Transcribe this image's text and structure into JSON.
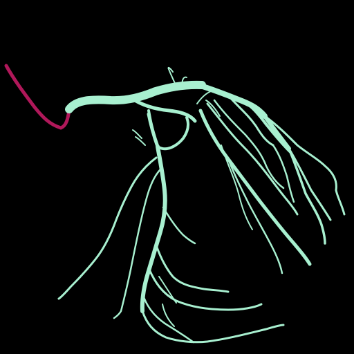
{
  "colors": {
    "background": "#000000",
    "catheter": "#B0185A",
    "vessel": "#A8F0D0"
  },
  "layers": {
    "catheter": "catheter",
    "vessel_tree": "vessel-tree"
  }
}
